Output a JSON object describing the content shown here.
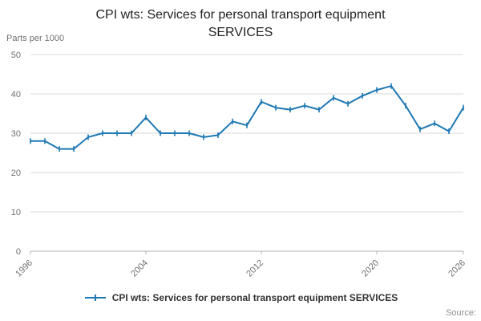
{
  "chart": {
    "title_line1": "CPI wts: Services for personal transport equipment",
    "title_line2": "SERVICES",
    "unit_label": "Parts per 1000",
    "legend_label": "CPI wts: Services for personal transport equipment SERVICES",
    "source_label": "Source:",
    "line_color": "#1e78b4",
    "grid_color": "#d9d9d9",
    "axis_color": "#b3b3b3",
    "tick_label_color": "#707070"
  },
  "chart_data": {
    "type": "line",
    "title": "CPI wts: Services for personal transport equipment SERVICES",
    "ylabel": "Parts per 1000",
    "xlabel": "",
    "ylim": [
      0,
      50
    ],
    "yticks": [
      0,
      10,
      20,
      30,
      40,
      50
    ],
    "xticks": [
      1996,
      2004,
      2012,
      2020,
      2026
    ],
    "grid": true,
    "legend_position": "bottom",
    "x": [
      1996,
      1997,
      1998,
      1999,
      2000,
      2001,
      2002,
      2003,
      2004,
      2005,
      2006,
      2007,
      2008,
      2009,
      2010,
      2011,
      2012,
      2013,
      2014,
      2015,
      2016,
      2017,
      2018,
      2019,
      2020,
      2021,
      2022,
      2023,
      2024,
      2025,
      2026
    ],
    "values": [
      28,
      28,
      26,
      26,
      29,
      30,
      30,
      30,
      34,
      30,
      30,
      30,
      29,
      29.5,
      33,
      32,
      38,
      36.5,
      36,
      37,
      36,
      39,
      37.5,
      39.5,
      41,
      42,
      37,
      31,
      32.5,
      30.5,
      36.5
    ]
  }
}
